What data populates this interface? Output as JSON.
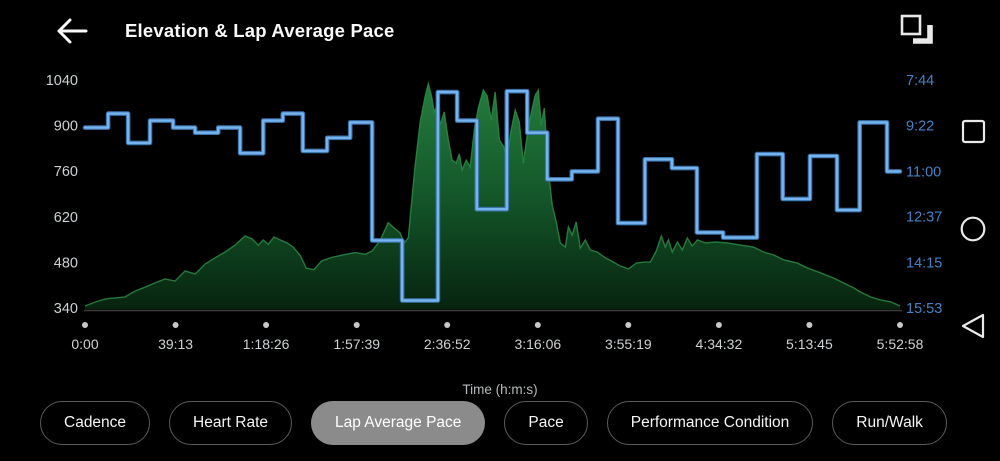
{
  "header": {
    "title": "Elevation & Lap Average Pace",
    "back_icon": "arrow-left",
    "compare_icon": "overlay-squares"
  },
  "chart_data": {
    "type": "area+step-line",
    "title": "Elevation & Lap Average Pace",
    "grid": false,
    "legend": "none",
    "x_axis": {
      "label": "Time (h:m:s)",
      "tick_labels": [
        "0:00",
        "39:13",
        "1:18:26",
        "1:57:39",
        "2:36:52",
        "3:16:06",
        "3:55:19",
        "4:34:32",
        "5:13:45",
        "5:52:58"
      ],
      "tick_seconds": [
        0,
        2353,
        4706,
        7059,
        9412,
        11766,
        14119,
        16472,
        18825,
        21178
      ],
      "max_seconds": 21178
    },
    "left_axis": {
      "series": "Elevation",
      "tick_labels": [
        "1040",
        "900",
        "760",
        "620",
        "480",
        "340"
      ],
      "tick_values": [
        1040,
        900,
        760,
        620,
        480,
        340
      ],
      "min": 340,
      "max": 1040
    },
    "right_axis": {
      "series": "Lap Average Pace",
      "tick_labels": [
        "7:44",
        "9:22",
        "11:00",
        "12:37",
        "14:15",
        "15:53"
      ],
      "tick_seconds": [
        464,
        562,
        660,
        757,
        855,
        953
      ],
      "min_seconds": 464,
      "max_seconds": 953,
      "inverted": true
    },
    "series": [
      {
        "name": "Elevation",
        "type": "area",
        "axis": "left",
        "points": [
          [
            0,
            346
          ],
          [
            260,
            358
          ],
          [
            520,
            368
          ],
          [
            780,
            371
          ],
          [
            1040,
            374
          ],
          [
            1300,
            392
          ],
          [
            1560,
            404
          ],
          [
            1820,
            417
          ],
          [
            2080,
            429
          ],
          [
            2340,
            423
          ],
          [
            2600,
            454
          ],
          [
            2860,
            444
          ],
          [
            3120,
            475
          ],
          [
            3380,
            494
          ],
          [
            3640,
            512
          ],
          [
            3900,
            533
          ],
          [
            4160,
            561
          ],
          [
            4340,
            552
          ],
          [
            4500,
            533
          ],
          [
            4630,
            549
          ],
          [
            4760,
            536
          ],
          [
            4910,
            558
          ],
          [
            5070,
            549
          ],
          [
            5250,
            540
          ],
          [
            5410,
            527
          ],
          [
            5600,
            500
          ],
          [
            5750,
            462
          ],
          [
            5950,
            458
          ],
          [
            6150,
            485
          ],
          [
            6400,
            495
          ],
          [
            6700,
            503
          ],
          [
            7020,
            510
          ],
          [
            7280,
            505
          ],
          [
            7460,
            515
          ],
          [
            7670,
            548
          ],
          [
            7880,
            602
          ],
          [
            8030,
            586
          ],
          [
            8190,
            570
          ],
          [
            8290,
            540
          ],
          [
            8400,
            555
          ],
          [
            8500,
            680
          ],
          [
            8580,
            779
          ],
          [
            8710,
            911
          ],
          [
            8840,
            991
          ],
          [
            8920,
            1028
          ],
          [
            9000,
            994
          ],
          [
            9075,
            942
          ],
          [
            9150,
            960
          ],
          [
            9230,
            902
          ],
          [
            9335,
            942
          ],
          [
            9440,
            856
          ],
          [
            9540,
            794
          ],
          [
            9645,
            785
          ],
          [
            9725,
            813
          ],
          [
            9800,
            764
          ],
          [
            9905,
            794
          ],
          [
            10010,
            773
          ],
          [
            10115,
            887
          ],
          [
            10220,
            954
          ],
          [
            10350,
            1009
          ],
          [
            10450,
            991
          ],
          [
            10555,
            917
          ],
          [
            10660,
            1003
          ],
          [
            10765,
            856
          ],
          [
            10870,
            837
          ],
          [
            10970,
            800
          ],
          [
            11075,
            887
          ],
          [
            11180,
            948
          ],
          [
            11285,
            911
          ],
          [
            11390,
            785
          ],
          [
            11490,
            871
          ],
          [
            11595,
            939
          ],
          [
            11700,
            994
          ],
          [
            11780,
            1009
          ],
          [
            11855,
            902
          ],
          [
            11935,
            954
          ],
          [
            12040,
            764
          ],
          [
            12140,
            656
          ],
          [
            12245,
            604
          ],
          [
            12350,
            540
          ],
          [
            12480,
            527
          ],
          [
            12560,
            589
          ],
          [
            12660,
            564
          ],
          [
            12765,
            604
          ],
          [
            12870,
            524
          ],
          [
            13000,
            549
          ],
          [
            13130,
            518
          ],
          [
            13310,
            512
          ],
          [
            13520,
            494
          ],
          [
            13730,
            481
          ],
          [
            13910,
            469
          ],
          [
            14120,
            460
          ],
          [
            14325,
            478
          ],
          [
            14535,
            481
          ],
          [
            14690,
            481
          ],
          [
            14845,
            515
          ],
          [
            14975,
            561
          ],
          [
            15080,
            527
          ],
          [
            15160,
            549
          ],
          [
            15260,
            512
          ],
          [
            15390,
            543
          ],
          [
            15520,
            518
          ],
          [
            15650,
            555
          ],
          [
            15780,
            530
          ],
          [
            15910,
            549
          ],
          [
            16120,
            540
          ],
          [
            16380,
            543
          ],
          [
            16690,
            540
          ],
          [
            17030,
            533
          ],
          [
            17370,
            527
          ],
          [
            17630,
            512
          ],
          [
            17890,
            503
          ],
          [
            18150,
            488
          ],
          [
            18510,
            478
          ],
          [
            18770,
            463
          ],
          [
            19110,
            448
          ],
          [
            19450,
            432
          ],
          [
            19810,
            411
          ],
          [
            19970,
            402
          ],
          [
            20150,
            389
          ],
          [
            20410,
            374
          ],
          [
            20670,
            365
          ],
          [
            20930,
            359
          ],
          [
            21110,
            350
          ],
          [
            21178,
            346
          ]
        ]
      },
      {
        "name": "Lap Average Pace",
        "type": "step",
        "axis": "right",
        "steps": [
          [
            0,
            600,
            566
          ],
          [
            600,
            1120,
            536
          ],
          [
            1120,
            1690,
            599
          ],
          [
            1690,
            2290,
            551
          ],
          [
            2290,
            2860,
            566
          ],
          [
            2860,
            3460,
            577
          ],
          [
            3460,
            4030,
            566
          ],
          [
            4030,
            4630,
            621
          ],
          [
            4630,
            5140,
            551
          ],
          [
            5140,
            5660,
            536
          ],
          [
            5660,
            6290,
            616
          ],
          [
            6290,
            6890,
            588
          ],
          [
            6890,
            7460,
            555
          ],
          [
            7460,
            8240,
            808
          ],
          [
            8240,
            9170,
            937
          ],
          [
            9170,
            9670,
            490
          ],
          [
            9670,
            10180,
            551
          ],
          [
            10180,
            10960,
            741
          ],
          [
            10960,
            11490,
            488
          ],
          [
            11490,
            12010,
            577
          ],
          [
            12010,
            12650,
            677
          ],
          [
            12650,
            13330,
            660
          ],
          [
            13330,
            13850,
            547
          ],
          [
            13850,
            14550,
            771
          ],
          [
            14550,
            15250,
            634
          ],
          [
            15250,
            15900,
            653
          ],
          [
            15900,
            16580,
            791
          ],
          [
            16580,
            17460,
            802
          ],
          [
            17460,
            18130,
            623
          ],
          [
            18130,
            18840,
            719
          ],
          [
            18840,
            19540,
            627
          ],
          [
            19540,
            20130,
            743
          ],
          [
            20130,
            20840,
            555
          ],
          [
            20840,
            21178,
            660
          ]
        ]
      }
    ]
  },
  "filters": {
    "buttons": [
      {
        "label": "Cadence",
        "selected": false
      },
      {
        "label": "Heart Rate",
        "selected": false
      },
      {
        "label": "Lap Average Pace",
        "selected": true
      },
      {
        "label": "Pace",
        "selected": false
      },
      {
        "label": "Performance Condition",
        "selected": false
      },
      {
        "label": "Run/Walk",
        "selected": false
      }
    ]
  },
  "nav_bar": {
    "icons": [
      {
        "name": "recents",
        "shape": "square"
      },
      {
        "name": "home",
        "shape": "circle"
      },
      {
        "name": "back",
        "shape": "triangle-left"
      }
    ]
  },
  "colors": {
    "background": "#000000",
    "text": "#fafafa",
    "elevation_top": "#267f3f",
    "elevation_mid": "#14582a",
    "elevation_bottom": "#07230f",
    "elevation_edge": "#2b8a45",
    "pace_line": "#77b4ee",
    "pace_line_dark": "#3e79b4",
    "right_axis_text": "#4283c8",
    "left_axis_text": "#ced2d4",
    "x_axis_text": "#cfd2d4",
    "dim_text": "#b7babc",
    "axis_line": "#3d3d3d",
    "tick_dot": "#c8c8c8",
    "pill_border": "#5b5b5b",
    "pill_selected_bg": "#8b8b8b",
    "nav_icon": "#e9e9e9"
  }
}
